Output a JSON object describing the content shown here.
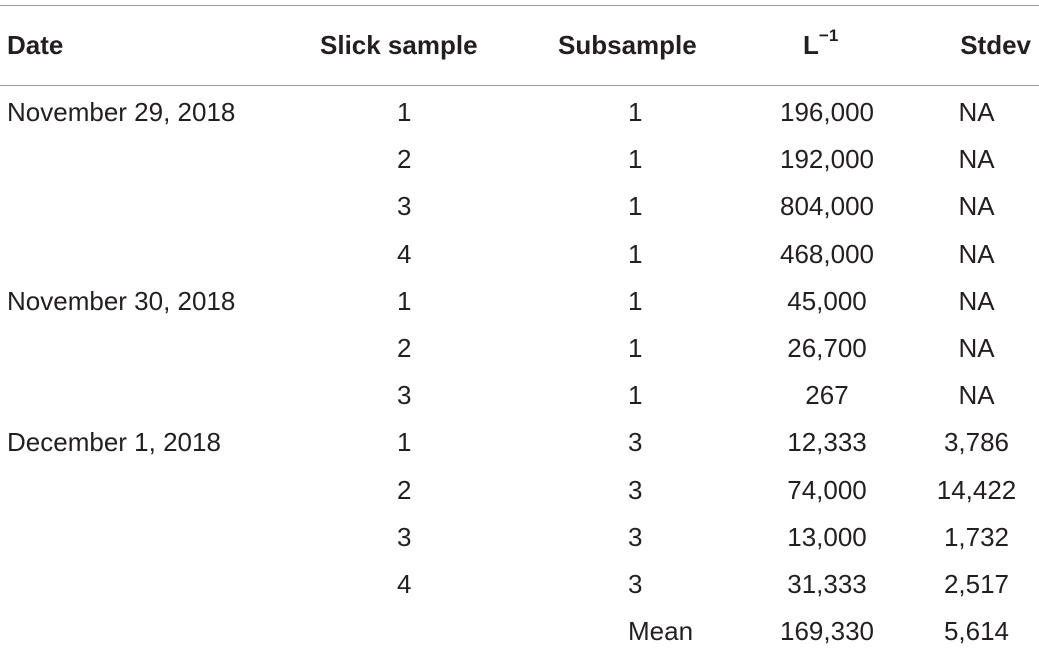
{
  "table": {
    "headers": {
      "date": "Date",
      "slick": "Slick sample",
      "subsample": "Subsample",
      "l_base": "L",
      "l_sup": "−1",
      "stdev": "Stdev"
    },
    "rows": [
      {
        "date": "November 29, 2018",
        "slick": "1",
        "subsample": "1",
        "l": "196,000",
        "stdev": "NA"
      },
      {
        "date": "",
        "slick": "2",
        "subsample": "1",
        "l": "192,000",
        "stdev": "NA"
      },
      {
        "date": "",
        "slick": "3",
        "subsample": "1",
        "l": "804,000",
        "stdev": "NA"
      },
      {
        "date": "",
        "slick": "4",
        "subsample": "1",
        "l": "468,000",
        "stdev": "NA"
      },
      {
        "date": "November 30, 2018",
        "slick": "1",
        "subsample": "1",
        "l": "45,000",
        "stdev": "NA"
      },
      {
        "date": "",
        "slick": "2",
        "subsample": "1",
        "l": "26,700",
        "stdev": "NA"
      },
      {
        "date": "",
        "slick": "3",
        "subsample": "1",
        "l": "267",
        "stdev": "NA"
      },
      {
        "date": "December 1, 2018",
        "slick": "1",
        "subsample": "3",
        "l": "12,333",
        "stdev": "3,786"
      },
      {
        "date": "",
        "slick": "2",
        "subsample": "3",
        "l": "74,000",
        "stdev": "14,422"
      },
      {
        "date": "",
        "slick": "3",
        "subsample": "3",
        "l": "13,000",
        "stdev": "1,732"
      },
      {
        "date": "",
        "slick": "4",
        "subsample": "3",
        "l": "31,333",
        "stdev": "2,517"
      },
      {
        "date": "",
        "slick": "",
        "subsample": "Mean",
        "l": "169,330",
        "stdev": "5,614"
      }
    ]
  }
}
